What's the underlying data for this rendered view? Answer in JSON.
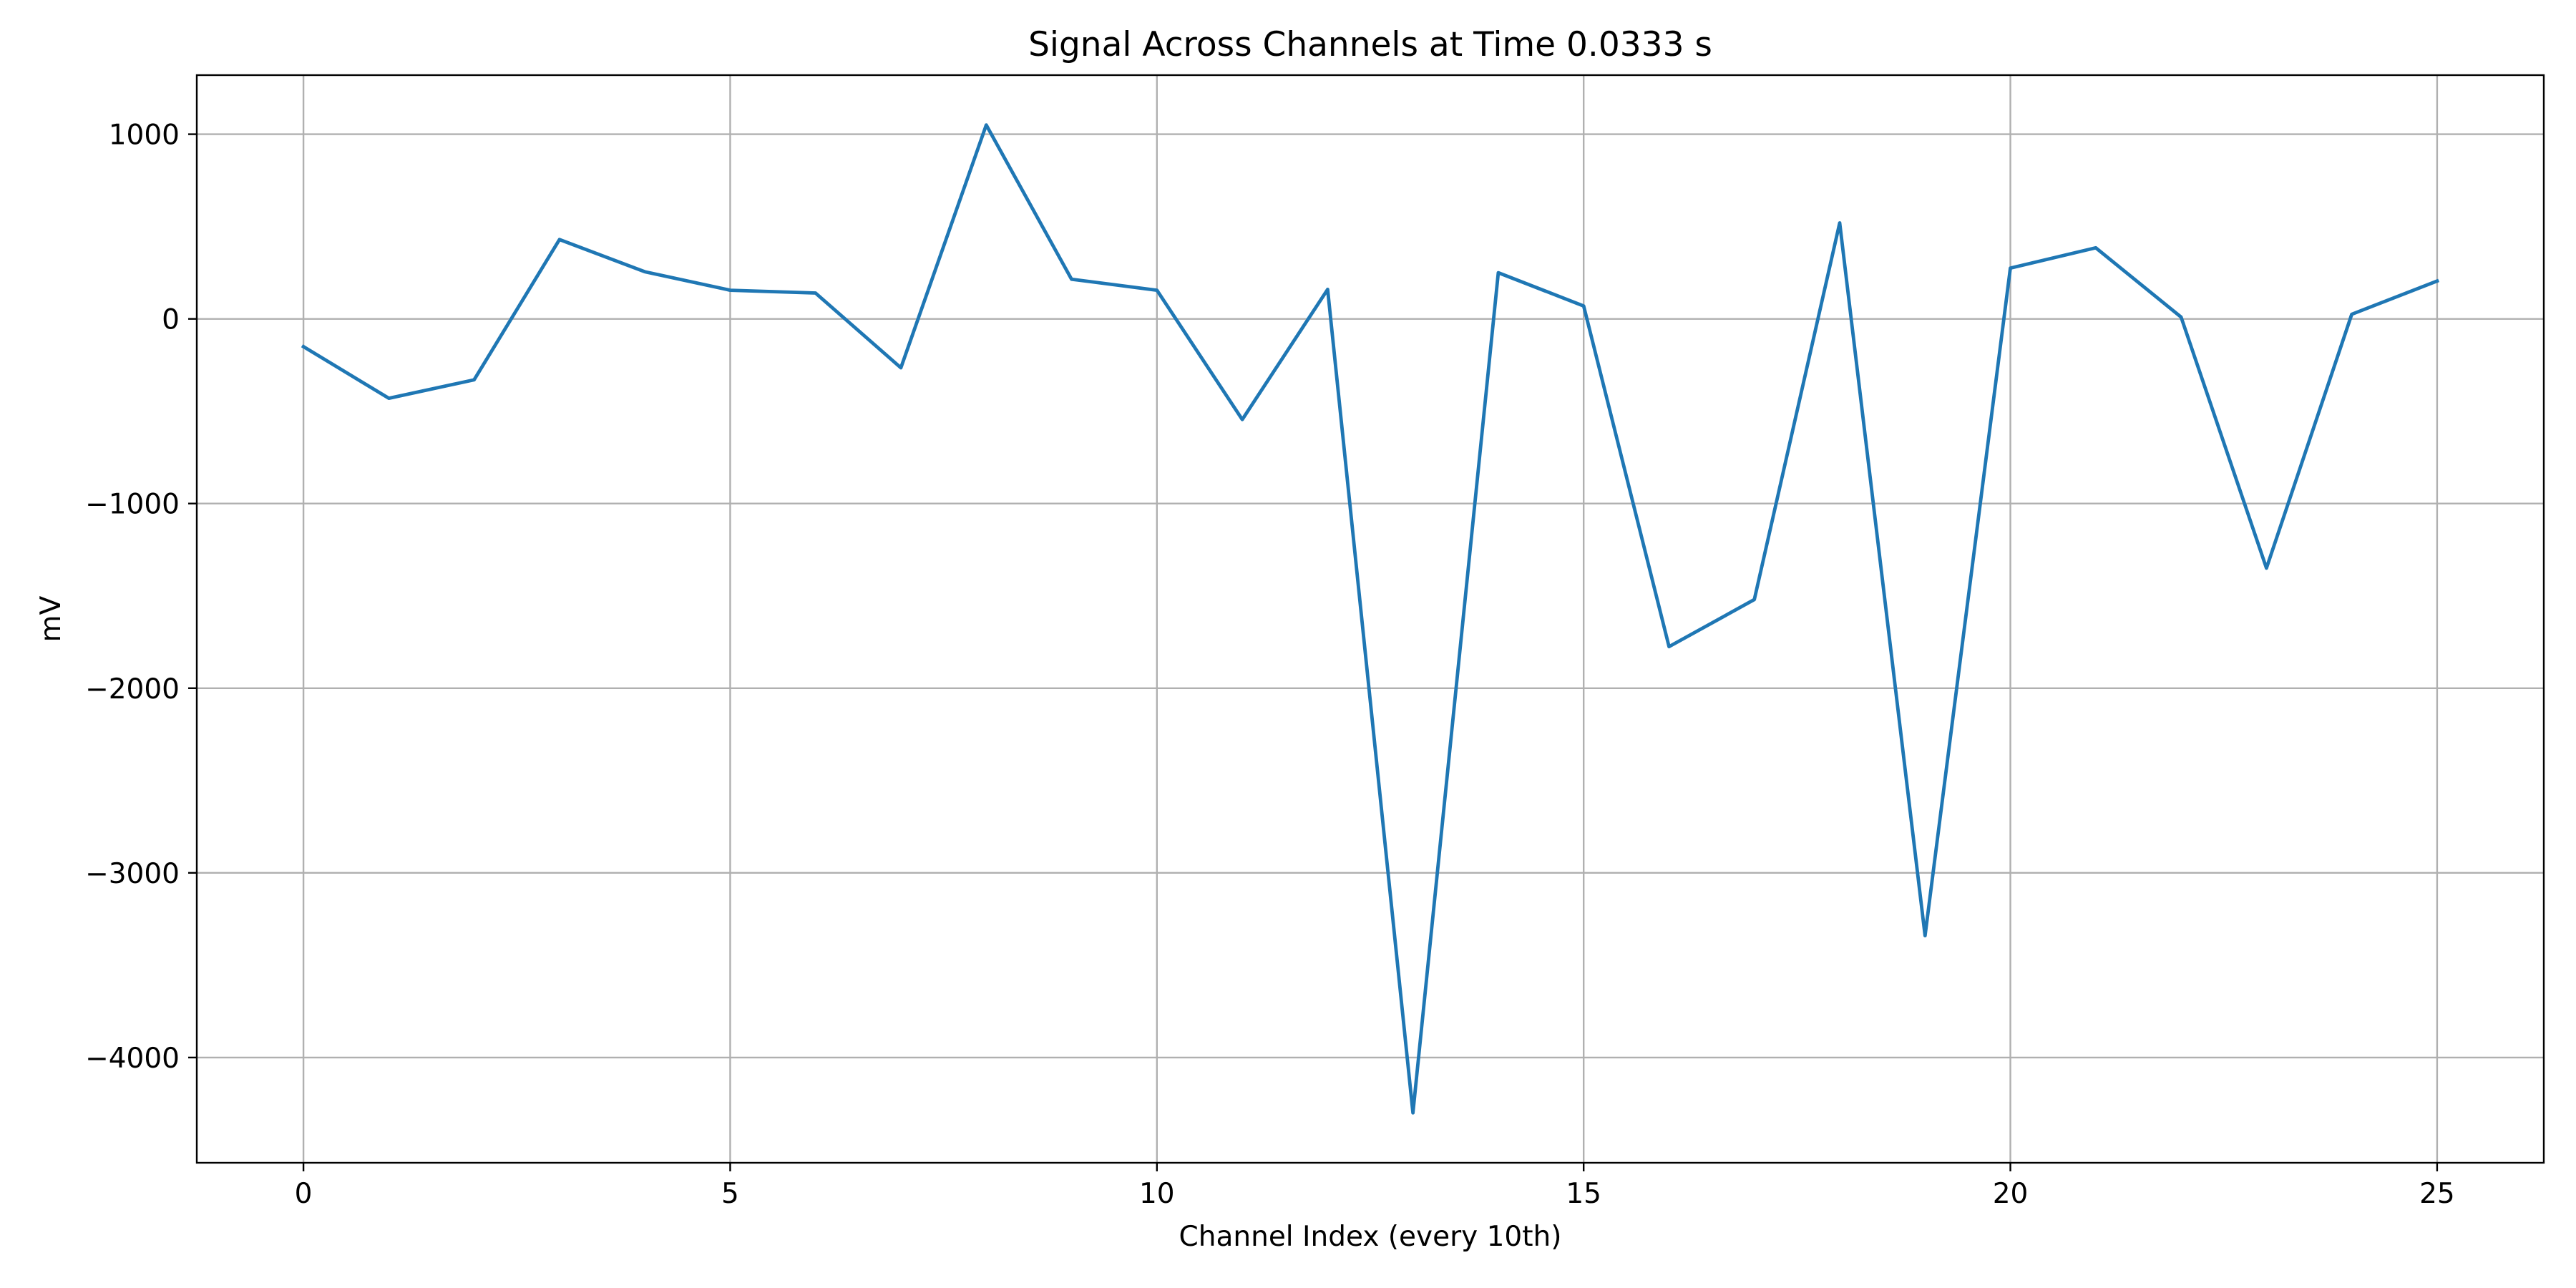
{
  "chart_data": {
    "type": "line",
    "title": "Signal Across Channels at Time 0.0333 s",
    "xlabel": "Channel Index (every 10th)",
    "ylabel": "mV",
    "xlim": [
      -1.25,
      26.25
    ],
    "ylim": [
      -4570,
      1320
    ],
    "x_ticks": [
      0,
      5,
      10,
      15,
      20,
      25
    ],
    "y_ticks": [
      1000,
      0,
      -1000,
      -2000,
      -3000,
      -4000
    ],
    "y_tick_labels": [
      "1000",
      "0",
      "−1000",
      "−2000",
      "−3000",
      "−4000"
    ],
    "grid": true,
    "colors": {
      "series": "#1f77b4"
    },
    "x": [
      0,
      1,
      2,
      3,
      4,
      5,
      6,
      7,
      8,
      9,
      10,
      11,
      12,
      13,
      14,
      15,
      16,
      17,
      18,
      19,
      20,
      21,
      22,
      23,
      24,
      25
    ],
    "series": [
      {
        "values": [
          -150,
          -430,
          -330,
          430,
          255,
          155,
          140,
          -265,
          1050,
          215,
          155,
          -545,
          160,
          -4300,
          250,
          70,
          -1775,
          -1520,
          520,
          -3340,
          275,
          385,
          10,
          -1350,
          25,
          205
        ]
      }
    ]
  }
}
